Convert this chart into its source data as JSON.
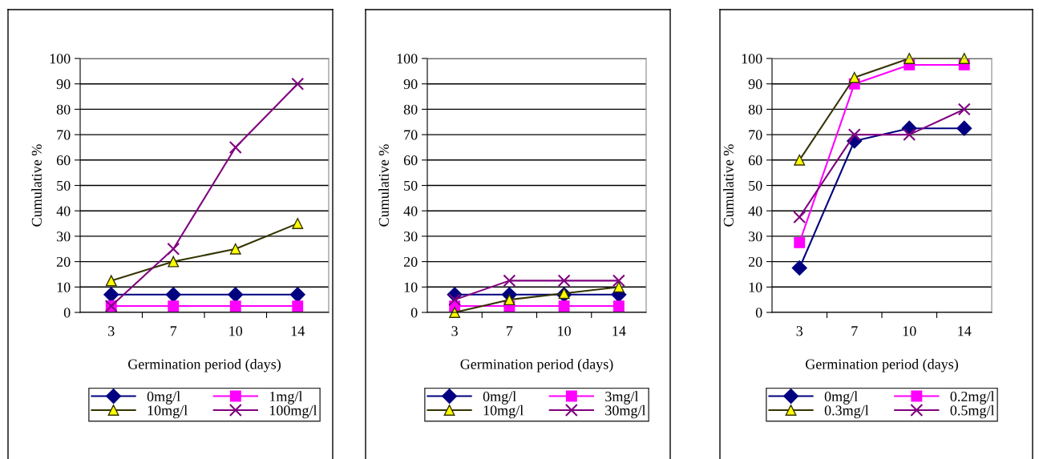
{
  "chart_data": [
    {
      "type": "line",
      "xlabel": "Germination period (days)",
      "ylabel": "Cumulative %",
      "categories": [
        "3",
        "7",
        "10",
        "14"
      ],
      "ylim": [
        0,
        100
      ],
      "yticks": [
        0,
        10,
        20,
        30,
        40,
        50,
        60,
        70,
        80,
        90,
        100
      ],
      "grid": "y",
      "legend": "bottom",
      "series": [
        {
          "name": "0mg/l",
          "color": "#000080",
          "marker": "diamond",
          "values": [
            7,
            7,
            7,
            7
          ]
        },
        {
          "name": "1mg/l",
          "color": "#ff00ff",
          "marker": "square",
          "values": [
            2.5,
            2.5,
            2.5,
            2.5
          ]
        },
        {
          "name": "10mg/l",
          "color": "#333300",
          "marker": "triangle",
          "values": [
            12.5,
            20,
            25,
            35
          ]
        },
        {
          "name": "100mg/l",
          "color": "#800080",
          "marker": "cross",
          "values": [
            2.5,
            25,
            65,
            90
          ]
        }
      ]
    },
    {
      "type": "line",
      "xlabel": "Germination period (days)",
      "ylabel": "Cumulative %",
      "categories": [
        "3",
        "7",
        "10",
        "14"
      ],
      "ylim": [
        0,
        100
      ],
      "yticks": [
        0,
        10,
        20,
        30,
        40,
        50,
        60,
        70,
        80,
        90,
        100
      ],
      "grid": "y",
      "legend": "bottom",
      "series": [
        {
          "name": "0mg/l",
          "color": "#000080",
          "marker": "diamond",
          "values": [
            7,
            7,
            7,
            7
          ]
        },
        {
          "name": "3mg/l",
          "color": "#ff00ff",
          "marker": "square",
          "values": [
            2.5,
            2.5,
            2.5,
            2.5
          ]
        },
        {
          "name": "10mg/l",
          "color": "#333300",
          "marker": "triangle",
          "values": [
            0,
            5,
            7.5,
            10
          ]
        },
        {
          "name": "30mg/l",
          "color": "#800080",
          "marker": "cross",
          "values": [
            5,
            12.5,
            12.5,
            12.5
          ]
        }
      ]
    },
    {
      "type": "line",
      "xlabel": "Germination period (days)",
      "ylabel": "Cumulative %",
      "categories": [
        "3",
        "7",
        "10",
        "14"
      ],
      "ylim": [
        0,
        100
      ],
      "yticks": [
        0,
        10,
        20,
        30,
        40,
        50,
        60,
        70,
        80,
        90,
        100
      ],
      "grid": "y",
      "legend": "bottom",
      "series": [
        {
          "name": "0mg/l",
          "color": "#000080",
          "marker": "diamond",
          "values": [
            17.5,
            67.5,
            72.5,
            72.5
          ]
        },
        {
          "name": "0.2mg/l",
          "color": "#ff00ff",
          "marker": "square",
          "values": [
            27.5,
            90,
            97.5,
            97.5
          ]
        },
        {
          "name": "0.3mg/l",
          "color": "#333300",
          "marker": "triangle",
          "values": [
            60,
            92.5,
            100,
            100
          ]
        },
        {
          "name": "0.5mg/l",
          "color": "#800080",
          "marker": "cross",
          "values": [
            37.5,
            70,
            70,
            80
          ]
        }
      ]
    }
  ]
}
